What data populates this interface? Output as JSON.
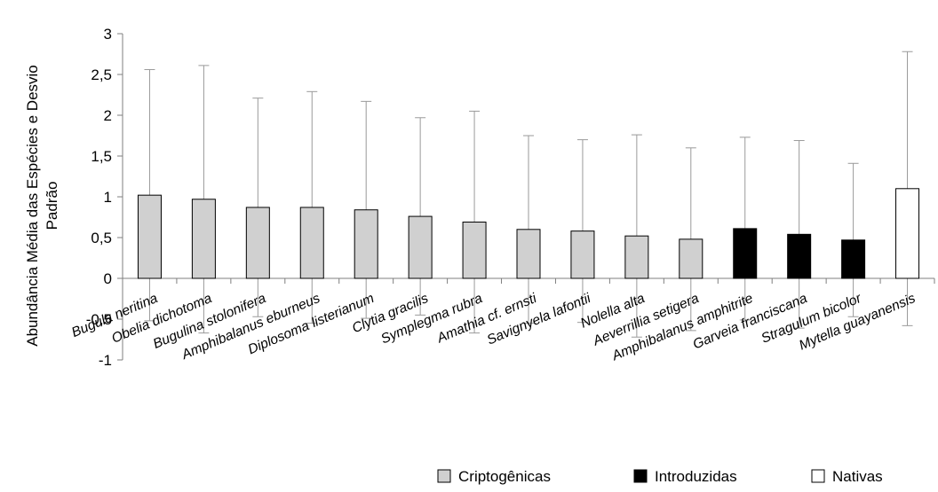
{
  "chart_data": {
    "type": "bar",
    "title": "",
    "xlabel": "",
    "ylabel_line1": "Abundância Média das Espécies e Desvio",
    "ylabel_line2": "Padrão",
    "ylim": [
      -1,
      3
    ],
    "yticks": [
      "-1",
      "-0,5",
      "0",
      "0,5",
      "1",
      "1,5",
      "2",
      "2,5",
      "3"
    ],
    "ytick_values": [
      -1,
      -0.5,
      0,
      0.5,
      1,
      1.5,
      2,
      2.5,
      3
    ],
    "categories": [
      "Bugula neritina",
      "Obelia dichotoma",
      "Bugulina stolonifera",
      "Amphibalanus eburneus",
      "Diplosoma listerianum",
      "Clytia gracilis",
      "Symplegma rubra",
      "Amathia cf. ernsti",
      "Savignyela lafontii",
      "Nolella alta",
      "Aeverrillia setigera",
      "Amphibalanus amphitrite",
      "Garveia franciscana",
      "Stragulum bicolor",
      "Mytella guayanensis"
    ],
    "values": [
      1.02,
      0.97,
      0.87,
      0.87,
      0.84,
      0.76,
      0.69,
      0.6,
      0.58,
      0.52,
      0.48,
      0.61,
      0.54,
      0.47,
      1.1
    ],
    "errors": [
      1.54,
      1.64,
      1.34,
      1.42,
      1.33,
      1.21,
      1.36,
      1.15,
      1.12,
      1.24,
      1.12,
      1.12,
      1.15,
      0.94,
      1.68
    ],
    "groups": [
      "Criptogênicas",
      "Criptogênicas",
      "Criptogênicas",
      "Criptogênicas",
      "Criptogênicas",
      "Criptogênicas",
      "Criptogênicas",
      "Criptogênicas",
      "Criptogênicas",
      "Criptogênicas",
      "Criptogênicas",
      "Introduzidas",
      "Introduzidas",
      "Introduzidas",
      "Nativas"
    ],
    "legend": [
      {
        "name": "Criptogênicas",
        "color": "#d0d0d0"
      },
      {
        "name": "Introduzidas",
        "color": "#000000"
      },
      {
        "name": "Nativas",
        "color": "#ffffff"
      }
    ],
    "legend_position": "bottom-right",
    "grid": false
  }
}
